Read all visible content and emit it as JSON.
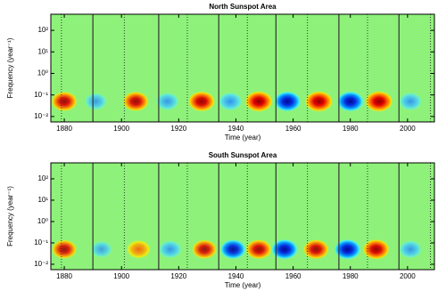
{
  "chart_data": [
    {
      "type": "wavelet",
      "title": "North Sunspot Area",
      "xlabel": "Time (year)",
      "ylabel": "Frequency (year⁻¹)",
      "x": [
        1880,
        1891,
        1905,
        1916,
        1928,
        1938,
        1948,
        1958,
        1969,
        1980,
        1990,
        2001
      ],
      "values": [
        0.8,
        -0.4,
        0.8,
        -0.5,
        0.9,
        -0.6,
        1,
        -0.9,
        1,
        -0.9,
        1,
        -0.5
      ],
      "band_frequency": 0.05,
      "solid_lines": [
        1890,
        1913,
        1934,
        1954,
        1976,
        1997
      ],
      "dotted_lines": [
        1879,
        1901,
        1923,
        1944,
        1965,
        1986,
        2008
      ],
      "xlim": [
        1875.3,
        2009.4
      ],
      "xticks": [
        1880,
        1900,
        1920,
        1940,
        1960,
        1980,
        2000
      ],
      "ylim": [
        0.0056,
        560
      ],
      "log_y": true,
      "yticks": [
        {
          "value": 0.01,
          "label": "10⁻²"
        },
        {
          "value": 0.1,
          "label": "10⁻¹"
        },
        {
          "value": 1,
          "label": "10⁰"
        },
        {
          "value": 10,
          "label": "10¹"
        },
        {
          "value": 100,
          "label": "10²"
        }
      ]
    },
    {
      "type": "wavelet",
      "title": "South Sunspot Area",
      "xlabel": "Time (year)",
      "ylabel": "Frequency (year⁻¹)",
      "x": [
        1880,
        1893,
        1906,
        1917,
        1929,
        1939,
        1948,
        1957,
        1968,
        1979,
        1989,
        2001
      ],
      "values": [
        0.7,
        -0.3,
        0.6,
        -0.5,
        0.7,
        -0.8,
        0.8,
        -0.9,
        0.8,
        -0.9,
        0.9,
        -0.5
      ],
      "band_frequency": 0.05,
      "solid_lines": [
        1890,
        1913,
        1934,
        1954,
        1976,
        1997
      ],
      "dotted_lines": [
        1879,
        1901,
        1923,
        1944,
        1965,
        1986,
        2008
      ],
      "xlim": [
        1875.3,
        2009.4
      ],
      "xticks": [
        1880,
        1900,
        1920,
        1940,
        1960,
        1980,
        2000
      ],
      "ylim": [
        0.0056,
        560
      ],
      "log_y": true,
      "yticks": [
        {
          "value": 0.01,
          "label": "10⁻²"
        },
        {
          "value": 0.1,
          "label": "10⁻¹"
        },
        {
          "value": 1,
          "label": "10⁰"
        },
        {
          "value": 10,
          "label": "10¹"
        },
        {
          "value": 100,
          "label": "10²"
        }
      ]
    }
  ]
}
